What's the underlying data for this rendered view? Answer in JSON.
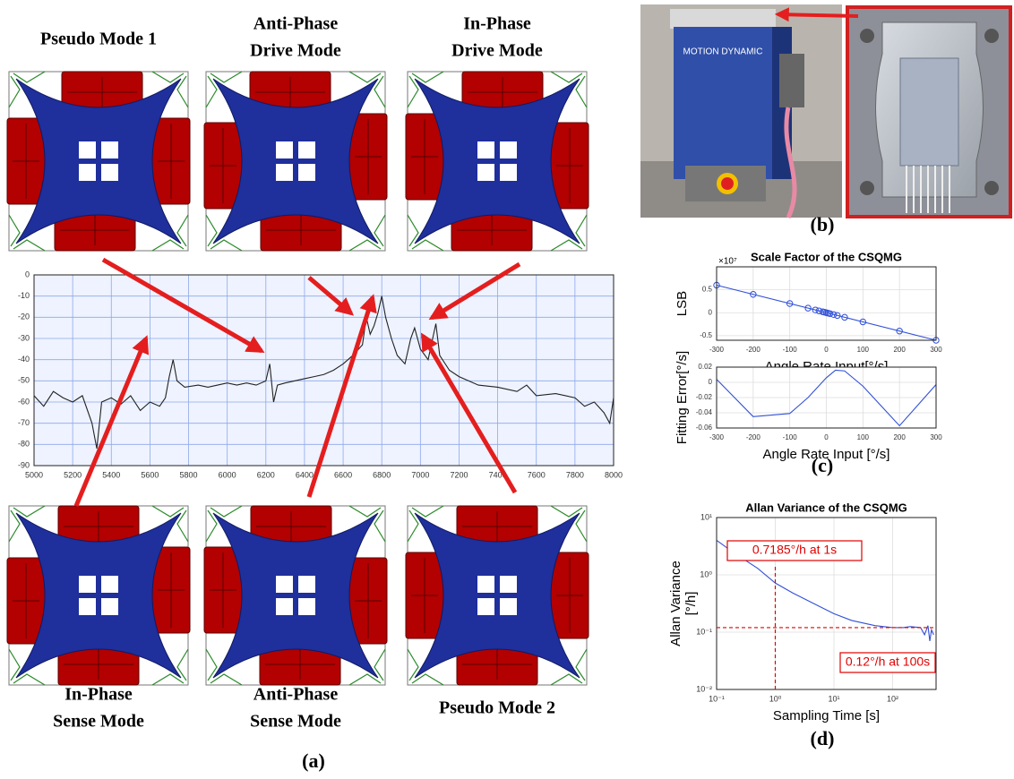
{
  "modes": [
    {
      "lines": [
        "Pseudo Mode 1"
      ]
    },
    {
      "lines": [
        "Anti-Phase",
        "Drive Mode"
      ]
    },
    {
      "lines": [
        "In-Phase",
        "Drive Mode"
      ]
    },
    {
      "lines": [
        "In-Phase",
        "Sense Mode"
      ]
    },
    {
      "lines": [
        "Anti-Phase",
        "Sense Mode"
      ]
    },
    {
      "lines": [
        "Pseudo Mode 2"
      ]
    }
  ],
  "panels": [
    "(a)",
    "(b)",
    "(c)",
    "(d)"
  ],
  "photo_text": "MOTION DYNAMIC",
  "chart_data": [
    {
      "type": "line",
      "background": "#eef3ff",
      "grid": true,
      "grid_color": "#8fa8e8",
      "xlim": [
        5000,
        8000
      ],
      "xticks": [
        5000,
        5200,
        5400,
        5600,
        5800,
        6000,
        6200,
        6400,
        6600,
        6800,
        7000,
        7200,
        7400,
        7600,
        7800,
        8000
      ],
      "ylim": [
        -90,
        0
      ],
      "yticks": [
        0,
        -10,
        -20,
        -30,
        -40,
        -50,
        -60,
        -70,
        -80,
        -90
      ],
      "series": [
        {
          "style": "line",
          "color": "#222222",
          "x": [
            5000,
            5050,
            5100,
            5150,
            5200,
            5250,
            5300,
            5325,
            5350,
            5400,
            5450,
            5500,
            5550,
            5600,
            5650,
            5680,
            5700,
            5720,
            5740,
            5780,
            5850,
            5900,
            5950,
            6000,
            6050,
            6100,
            6150,
            6200,
            6220,
            6240,
            6260,
            6300,
            6350,
            6400,
            6450,
            6500,
            6550,
            6600,
            6650,
            6700,
            6720,
            6740,
            6760,
            6780,
            6800,
            6820,
            6850,
            6880,
            6920,
            6950,
            6970,
            7000,
            7040,
            7080,
            7100,
            7150,
            7200,
            7250,
            7300,
            7400,
            7500,
            7550,
            7600,
            7700,
            7800,
            7850,
            7900,
            7950,
            7980,
            8000
          ],
          "values": [
            -57,
            -62,
            -55,
            -58,
            -60,
            -57,
            -70,
            -82,
            -60,
            -58,
            -61,
            -57,
            -64,
            -60,
            -62,
            -58,
            -48,
            -40,
            -50,
            -53,
            -52,
            -53,
            -52,
            -51,
            -52,
            -51,
            -52,
            -50,
            -42,
            -60,
            -52,
            -51,
            -50,
            -49,
            -48,
            -47,
            -45,
            -42,
            -38,
            -33,
            -20,
            -28,
            -24,
            -18,
            -10,
            -20,
            -30,
            -38,
            -42,
            -30,
            -25,
            -35,
            -40,
            -23,
            -38,
            -45,
            -48,
            -50,
            -52,
            -53,
            -55,
            -52,
            -57,
            -56,
            -58,
            -62,
            -60,
            -65,
            -70,
            -58
          ]
        }
      ]
    },
    {
      "type": "scatter",
      "title": "Scale Factor of the CSQMG",
      "xlabel": "Angle Rate Input[°/s]",
      "ylabel": "LSB",
      "y_multiplier": "×10⁷",
      "grid": true,
      "grid_color": "#dddddd",
      "xlim": [
        -300,
        300
      ],
      "xticks": [
        -300,
        -200,
        -100,
        0,
        100,
        200,
        300
      ],
      "ylim": [
        -0.6,
        1
      ],
      "yticks": [
        -0.5,
        0,
        0.5
      ],
      "series": [
        {
          "style": "markers",
          "color": "#3050d8",
          "x": [
            -300,
            -200,
            -100,
            -50,
            -30,
            -20,
            -10,
            -5,
            0,
            5,
            10,
            20,
            30,
            50,
            100,
            200,
            300
          ],
          "values": [
            0.6,
            0.4,
            0.2,
            0.1,
            0.06,
            0.04,
            0.02,
            0.01,
            0,
            -0.01,
            -0.02,
            -0.04,
            -0.06,
            -0.1,
            -0.2,
            -0.4,
            -0.6
          ]
        },
        {
          "style": "line",
          "color": "#3050d8",
          "x": [
            -300,
            300
          ],
          "values": [
            0.6,
            -0.6
          ]
        }
      ]
    },
    {
      "type": "line",
      "xlabel": "Angle Rate Input [°/s]",
      "ylabel": "Fitting Error[°/s]",
      "grid": true,
      "grid_color": "#dddddd",
      "xlim": [
        -300,
        300
      ],
      "xticks": [
        -300,
        -200,
        -100,
        0,
        100,
        200,
        300
      ],
      "ylim": [
        -0.06,
        0.02
      ],
      "yticks": [
        0.02,
        0,
        -0.02,
        -0.04,
        -0.06
      ],
      "series": [
        {
          "style": "line",
          "color": "#3050d8",
          "x": [
            -300,
            -200,
            -100,
            -50,
            0,
            25,
            50,
            100,
            150,
            200,
            250,
            300
          ],
          "values": [
            0.004,
            -0.045,
            -0.041,
            -0.02,
            0.006,
            0.016,
            0.015,
            -0.005,
            -0.031,
            -0.057,
            -0.03,
            -0.003
          ]
        }
      ]
    },
    {
      "type": "line",
      "title": "Allan Variance of the CSQMG",
      "xlabel": "Sampling Time [s]",
      "ylabel": [
        "Allan Variance",
        "[°/h]"
      ],
      "xscale": "log",
      "yscale": "log",
      "grid": true,
      "grid_color": "#dddddd",
      "xlim": [
        0.1,
        550
      ],
      "xticks": [
        {
          "value": 0.1,
          "label": "10⁻¹"
        },
        {
          "value": 1,
          "label": "10⁰"
        },
        {
          "value": 10,
          "label": "10¹"
        },
        {
          "value": 100,
          "label": "10²"
        }
      ],
      "ylim": [
        0.01,
        10
      ],
      "yticks": [
        {
          "value": 0.01,
          "label": "10⁻²"
        },
        {
          "value": 0.1,
          "label": "10⁻¹"
        },
        {
          "value": 1,
          "label": "10⁰"
        },
        {
          "value": 10,
          "label": "10¹"
        }
      ],
      "series": [
        {
          "style": "line",
          "color": "#3050d8",
          "x": [
            0.1,
            0.2,
            0.5,
            1,
            2,
            5,
            10,
            20,
            50,
            100,
            150,
            200,
            300,
            350,
            400,
            430,
            460,
            500
          ],
          "values": [
            4,
            2.4,
            1.3,
            0.72,
            0.48,
            0.3,
            0.21,
            0.16,
            0.13,
            0.12,
            0.12,
            0.125,
            0.12,
            0.09,
            0.13,
            0.07,
            0.11,
            0.09
          ]
        }
      ],
      "ref_lines": {
        "x": 1,
        "y": 0.12,
        "color": "#e00000"
      },
      "annotations": [
        {
          "text": "0.7185°/h at 1s"
        },
        {
          "text": "0.12°/h at 100s"
        }
      ]
    }
  ]
}
